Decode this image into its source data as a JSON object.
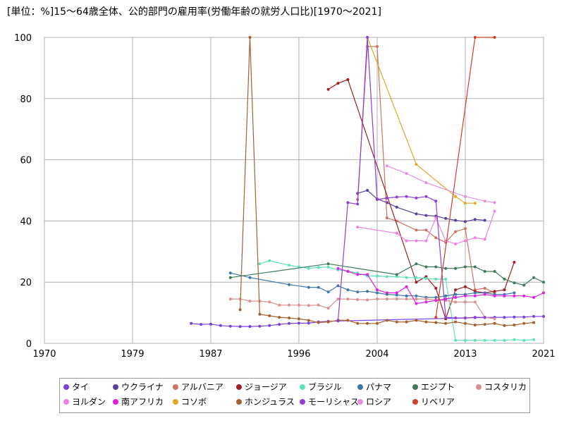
{
  "chart_data": {
    "type": "line",
    "title": "[単位：%]15～64歳全体、公的部門の雇用率(労働年齢の就労人口比)[1970～2021]",
    "xlabel": "",
    "ylabel": "",
    "xlim": [
      1970,
      2021
    ],
    "ylim": [
      0,
      100
    ],
    "x_ticks": [
      1970,
      1979,
      1987,
      1996,
      2004,
      2013,
      2021
    ],
    "y_ticks": [
      0,
      20,
      40,
      60,
      80,
      100
    ],
    "grid": true,
    "legend_position": "bottom",
    "series": [
      {
        "name": "タイ",
        "color": "#7b3fe0",
        "points": [
          [
            1985,
            6.5
          ],
          [
            1986,
            6.2
          ],
          [
            1987,
            6.3
          ],
          [
            1988,
            5.8
          ],
          [
            1989,
            5.6
          ],
          [
            1990,
            5.5
          ],
          [
            1991,
            5.5
          ],
          [
            1992,
            5.6
          ],
          [
            1993,
            5.8
          ],
          [
            1994,
            6.2
          ],
          [
            1995,
            6.5
          ],
          [
            1996,
            6.6
          ],
          [
            1997,
            6.6
          ],
          [
            1998,
            7.0
          ],
          [
            1999,
            7.2
          ],
          [
            2000,
            7.3
          ],
          [
            2013,
            8.3
          ],
          [
            2014,
            8.4
          ],
          [
            2015,
            8.4
          ],
          [
            2016,
            8.5
          ],
          [
            2017,
            8.5
          ],
          [
            2018,
            8.6
          ],
          [
            2019,
            8.6
          ],
          [
            2020,
            8.8
          ],
          [
            2021,
            8.8
          ]
        ]
      },
      {
        "name": "ウクライナ",
        "color": "#5a3e9e",
        "points": [
          [
            2002,
            49.0
          ],
          [
            2003,
            50.0
          ],
          [
            2004,
            47.2
          ],
          [
            2005,
            46.0
          ],
          [
            2006,
            44.5
          ],
          [
            2008,
            42.3
          ],
          [
            2009,
            41.8
          ],
          [
            2010,
            41.6
          ],
          [
            2011,
            40.8
          ],
          [
            2012,
            40.2
          ],
          [
            2013,
            39.8
          ],
          [
            2014,
            40.5
          ],
          [
            2015,
            40.2
          ]
        ]
      },
      {
        "name": "アルバニア",
        "color": "#d0705e",
        "points": [
          [
            2002,
            47.0
          ],
          [
            2003,
            97.0
          ],
          [
            2004,
            97.0
          ],
          [
            2005,
            41.0
          ],
          [
            2006,
            40.0
          ],
          [
            2008,
            37.0
          ],
          [
            2009,
            37.0
          ],
          [
            2010,
            34.5
          ],
          [
            2011,
            33.0
          ],
          [
            2012,
            36.5
          ],
          [
            2013,
            37.5
          ],
          [
            2014,
            17.5
          ],
          [
            2015,
            18.0
          ],
          [
            2016,
            16.5
          ]
        ]
      },
      {
        "name": "ジョージア",
        "color": "#a02020",
        "points": [
          [
            1999,
            83.0
          ],
          [
            2000,
            85.0
          ],
          [
            2001,
            86.2
          ],
          [
            2008,
            20.0
          ],
          [
            2009,
            21.8
          ],
          [
            2010,
            18.0
          ],
          [
            2011,
            8.0
          ],
          [
            2012,
            17.5
          ],
          [
            2013,
            18.5
          ],
          [
            2014,
            17.0
          ],
          [
            2015,
            16.5
          ],
          [
            2016,
            17.0
          ],
          [
            2017,
            17.5
          ],
          [
            2018,
            26.5
          ]
        ]
      },
      {
        "name": "ブラジル",
        "color": "#5ee3b8",
        "points": [
          [
            1992,
            26.0
          ],
          [
            1993,
            27.0
          ],
          [
            1995,
            25.5
          ],
          [
            1996,
            25.0
          ],
          [
            1997,
            24.5
          ],
          [
            1998,
            24.8
          ],
          [
            1999,
            24.9
          ],
          [
            2000,
            24.0
          ],
          [
            2001,
            23.6
          ],
          [
            2002,
            23.0
          ],
          [
            2003,
            22.0
          ],
          [
            2004,
            22.0
          ],
          [
            2005,
            21.8
          ],
          [
            2006,
            21.8
          ],
          [
            2007,
            21.5
          ],
          [
            2008,
            21.5
          ],
          [
            2009,
            21.2
          ],
          [
            2010,
            21.0
          ],
          [
            2011,
            21.0
          ],
          [
            2012,
            1.0
          ],
          [
            2013,
            1.0
          ],
          [
            2014,
            1.0
          ],
          [
            2015,
            1.0
          ],
          [
            2016,
            1.0
          ],
          [
            2017,
            1.0
          ],
          [
            2018,
            1.2
          ],
          [
            2019,
            1.0
          ],
          [
            2020,
            1.2
          ]
        ]
      },
      {
        "name": "パナマ",
        "color": "#3e78a8",
        "points": [
          [
            1989,
            23.0
          ],
          [
            1991,
            21.5
          ],
          [
            1995,
            19.2
          ],
          [
            1997,
            18.3
          ],
          [
            1998,
            18.3
          ],
          [
            1999,
            16.8
          ],
          [
            2000,
            18.8
          ],
          [
            2001,
            17.5
          ],
          [
            2002,
            16.8
          ],
          [
            2003,
            17.0
          ],
          [
            2004,
            16.5
          ],
          [
            2005,
            16.0
          ],
          [
            2006,
            15.8
          ],
          [
            2007,
            15.5
          ],
          [
            2008,
            15.5
          ],
          [
            2009,
            15.0
          ],
          [
            2010,
            15.0
          ],
          [
            2011,
            15.5
          ],
          [
            2012,
            16.0
          ],
          [
            2013,
            16.0
          ],
          [
            2014,
            16.5
          ],
          [
            2015,
            16.5
          ],
          [
            2016,
            16.0
          ],
          [
            2017,
            16.0
          ],
          [
            2018,
            16.5
          ]
        ]
      },
      {
        "name": "エジプト",
        "color": "#3e7a58",
        "points": [
          [
            1989,
            21.5
          ],
          [
            1999,
            26.0
          ],
          [
            2006,
            22.5
          ],
          [
            2008,
            26.0
          ],
          [
            2009,
            25.0
          ],
          [
            2010,
            25.0
          ],
          [
            2011,
            24.5
          ],
          [
            2012,
            24.5
          ],
          [
            2013,
            25.0
          ],
          [
            2014,
            25.0
          ],
          [
            2015,
            23.5
          ],
          [
            2016,
            23.5
          ],
          [
            2017,
            21.0
          ],
          [
            2018,
            19.8
          ],
          [
            2019,
            19.0
          ],
          [
            2020,
            21.5
          ],
          [
            2021,
            20.0
          ]
        ]
      },
      {
        "name": "コスタリカ",
        "color": "#d89090",
        "points": [
          [
            1989,
            14.5
          ],
          [
            1990,
            14.5
          ],
          [
            1991,
            13.8
          ],
          [
            1992,
            13.8
          ],
          [
            1993,
            13.5
          ],
          [
            1994,
            12.5
          ],
          [
            1995,
            12.5
          ],
          [
            1996,
            12.5
          ],
          [
            1997,
            12.4
          ],
          [
            1998,
            12.5
          ],
          [
            1999,
            11.5
          ],
          [
            2000,
            14.5
          ],
          [
            2001,
            14.5
          ],
          [
            2002,
            14.3
          ],
          [
            2003,
            14.2
          ],
          [
            2004,
            14.5
          ],
          [
            2005,
            14.5
          ],
          [
            2006,
            14.5
          ],
          [
            2007,
            14.5
          ],
          [
            2008,
            14.5
          ],
          [
            2009,
            14.5
          ],
          [
            2010,
            14.2
          ],
          [
            2011,
            14.0
          ],
          [
            2012,
            13.5
          ],
          [
            2013,
            13.5
          ],
          [
            2014,
            13.5
          ],
          [
            2015,
            8.5
          ],
          [
            2016,
            8.0
          ]
        ]
      },
      {
        "name": "ヨルダン",
        "color": "#f080e0",
        "points": [
          [
            2002,
            38.0
          ],
          [
            2006,
            36.0
          ],
          [
            2007,
            33.5
          ],
          [
            2008,
            33.5
          ],
          [
            2009,
            33.5
          ],
          [
            2010,
            41.0
          ],
          [
            2011,
            33.5
          ],
          [
            2012,
            32.5
          ],
          [
            2013,
            33.5
          ],
          [
            2014,
            34.5
          ],
          [
            2015,
            34.0
          ],
          [
            2016,
            43.2
          ]
        ]
      },
      {
        "name": "南アフリカ",
        "color": "#e020e0",
        "points": [
          [
            2000,
            24.5
          ],
          [
            2001,
            23.5
          ],
          [
            2002,
            22.5
          ],
          [
            2003,
            22.5
          ],
          [
            2004,
            17.5
          ],
          [
            2005,
            16.5
          ],
          [
            2006,
            16.5
          ],
          [
            2007,
            18.5
          ],
          [
            2008,
            13.0
          ],
          [
            2009,
            13.5
          ],
          [
            2010,
            14.0
          ],
          [
            2011,
            14.5
          ],
          [
            2012,
            15.0
          ],
          [
            2013,
            15.5
          ],
          [
            2014,
            15.5
          ],
          [
            2015,
            16.0
          ],
          [
            2016,
            15.5
          ],
          [
            2017,
            15.5
          ],
          [
            2018,
            15.5
          ],
          [
            2019,
            15.5
          ],
          [
            2020,
            15.0
          ],
          [
            2021,
            16.5
          ]
        ]
      },
      {
        "name": "コソボ",
        "color": "#e0a820",
        "points": [
          [
            2003,
            100.0
          ],
          [
            2008,
            58.5
          ],
          [
            2012,
            48.0
          ],
          [
            2013,
            45.8
          ],
          [
            2014,
            45.8
          ]
        ]
      },
      {
        "name": "ホンジュラス",
        "color": "#a8602a",
        "points": [
          [
            1990,
            11.0
          ],
          [
            1991,
            100.0
          ],
          [
            1992,
            9.5
          ],
          [
            1993,
            9.0
          ],
          [
            1994,
            8.5
          ],
          [
            1995,
            8.3
          ],
          [
            1996,
            8.0
          ],
          [
            1997,
            7.5
          ],
          [
            1998,
            6.8
          ],
          [
            1999,
            7.0
          ],
          [
            2000,
            7.5
          ],
          [
            2001,
            7.5
          ],
          [
            2002,
            6.5
          ],
          [
            2003,
            6.5
          ],
          [
            2004,
            6.5
          ],
          [
            2005,
            7.5
          ],
          [
            2006,
            7.0
          ],
          [
            2007,
            7.0
          ],
          [
            2008,
            7.5
          ],
          [
            2009,
            7.0
          ],
          [
            2010,
            6.8
          ],
          [
            2011,
            6.5
          ],
          [
            2012,
            7.0
          ],
          [
            2013,
            6.5
          ],
          [
            2014,
            6.0
          ],
          [
            2015,
            6.2
          ],
          [
            2016,
            6.5
          ],
          [
            2017,
            5.8
          ],
          [
            2018,
            6.0
          ],
          [
            2019,
            6.5
          ],
          [
            2020,
            6.8
          ]
        ]
      },
      {
        "name": "モーリシャス",
        "color": "#9040d0",
        "points": [
          [
            2000,
            7.5
          ],
          [
            2001,
            46.0
          ],
          [
            2002,
            45.5
          ],
          [
            2003,
            100.0
          ],
          [
            2004,
            47.0
          ],
          [
            2005,
            47.5
          ],
          [
            2006,
            47.8
          ],
          [
            2007,
            48.0
          ],
          [
            2008,
            47.5
          ],
          [
            2009,
            48.0
          ],
          [
            2010,
            46.5
          ],
          [
            2011,
            8.5
          ],
          [
            2012,
            8.3
          ],
          [
            2013,
            8.3
          ],
          [
            2014,
            8.5
          ],
          [
            2015,
            8.5
          ]
        ]
      },
      {
        "name": "ロシア",
        "color": "#e090e0",
        "points": [
          [
            2005,
            58.0
          ],
          [
            2007,
            55.5
          ],
          [
            2009,
            52.5
          ],
          [
            2013,
            48.0
          ],
          [
            2015,
            46.5
          ],
          [
            2016,
            46.0
          ]
        ]
      },
      {
        "name": "リベリア",
        "color": "#d04020",
        "points": [
          [
            2010,
            8.5
          ],
          [
            2014,
            100.0
          ],
          [
            2016,
            100.0
          ]
        ]
      }
    ]
  }
}
